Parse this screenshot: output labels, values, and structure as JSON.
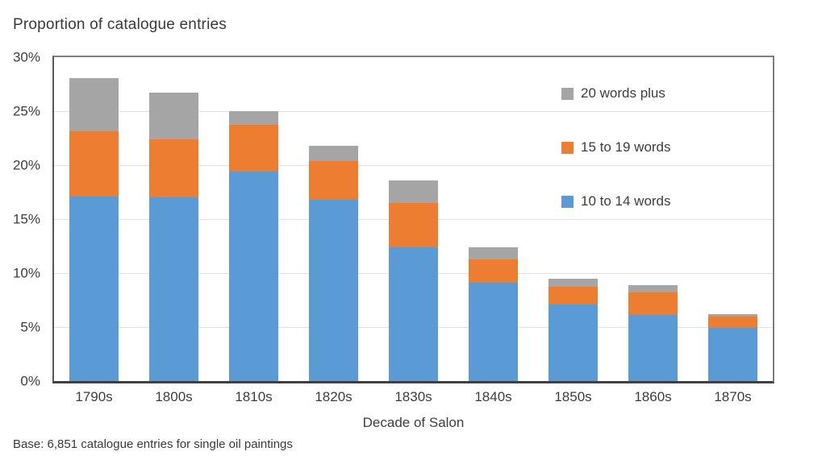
{
  "footnote": "Base: 6,851 catalogue entries for single oil paintings",
  "chart_data": {
    "type": "bar",
    "stacked": true,
    "title": "Proportion of catalogue entries",
    "xlabel": "Decade of Salon",
    "ylabel": "Proportion of catalogue entries",
    "categories": [
      "1790s",
      "1800s",
      "1810s",
      "1820s",
      "1830s",
      "1840s",
      "1850s",
      "1860s",
      "1870s"
    ],
    "series": [
      {
        "name": "10 to 14 words",
        "color": "#5B9BD5",
        "values": [
          17.1,
          17.0,
          19.4,
          16.8,
          12.4,
          9.1,
          7.1,
          6.1,
          4.9
        ]
      },
      {
        "name": "15 to 19 words",
        "color": "#ED7D31",
        "values": [
          6.0,
          5.4,
          4.3,
          3.6,
          4.1,
          2.2,
          1.6,
          2.1,
          1.1
        ]
      },
      {
        "name": "20 words plus",
        "color": "#A5A5A5",
        "values": [
          5.0,
          4.3,
          1.3,
          1.4,
          2.1,
          1.1,
          0.8,
          0.7,
          0.2
        ]
      }
    ],
    "totals": [
      28.1,
      26.7,
      25.0,
      21.8,
      18.6,
      12.4,
      9.5,
      8.9,
      6.2
    ],
    "ylim": [
      0,
      30
    ],
    "ytick_step": 5,
    "ytick_labels": [
      "30%",
      "25%",
      "20%",
      "15%",
      "10%",
      "5%",
      "0%"
    ],
    "grid": true,
    "legend_position": "inside-top-right",
    "legend_order_top_to_bottom": [
      "20 words plus",
      "15 to 19 words",
      "10 to 14 words"
    ],
    "colors": {
      "gridline": "#e2e2e2",
      "axis_line": "#404040",
      "plot_border": "#7f7f7f",
      "text": "#3d3d3d"
    }
  }
}
